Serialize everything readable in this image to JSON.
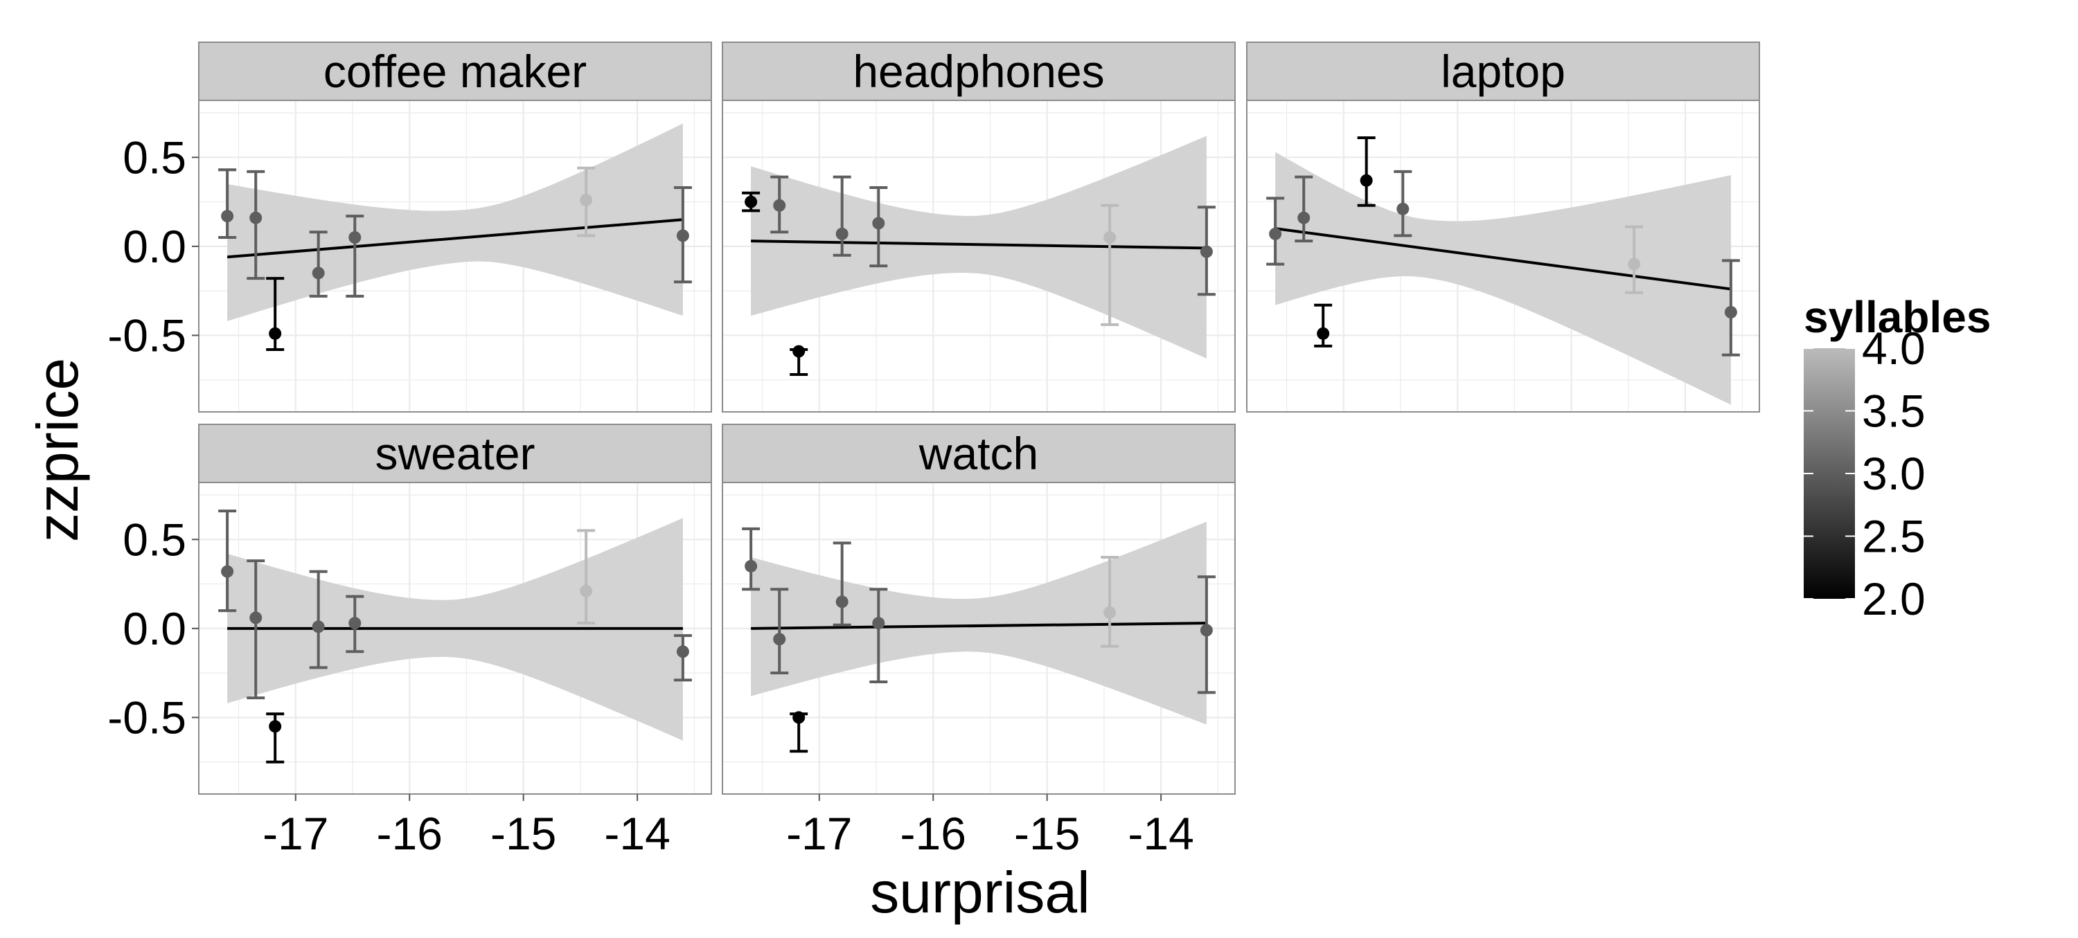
{
  "chart_data": {
    "type": "scatter",
    "facet_variable": "product",
    "xlabel": "surprisal",
    "ylabel": "zzprice",
    "xlim": [
      -17.85,
      -13.35
    ],
    "ylim": [
      -0.93,
      0.82
    ],
    "x_ticks": [
      {
        "value": -17,
        "label": "-17"
      },
      {
        "value": -16,
        "label": "-16"
      },
      {
        "value": -15,
        "label": "-15"
      },
      {
        "value": -14,
        "label": "-14"
      }
    ],
    "y_ticks": [
      {
        "value": 0.5,
        "label": "0.5"
      },
      {
        "value": 0.0,
        "label": "0.0"
      },
      {
        "value": -0.5,
        "label": "-0.5"
      }
    ],
    "grid": true,
    "legend": {
      "title": "syllables",
      "position": "right",
      "min": 2.0,
      "max": 4.0,
      "ticks": [
        {
          "value": 4.0,
          "label": "4.0"
        },
        {
          "value": 3.5,
          "label": "3.5"
        },
        {
          "value": 3.0,
          "label": "3.0"
        },
        {
          "value": 2.5,
          "label": "2.5"
        },
        {
          "value": 2.0,
          "label": "2.0"
        }
      ],
      "color_low": "#000000",
      "color_high": "#bbbbbb"
    },
    "colors": {
      "strip_fill": "#cccccc",
      "panel_border": "#8c8c8c",
      "grid": "#ebebeb",
      "ribbon": "#d3d3d3",
      "fit_line": "#000000"
    },
    "panels": [
      {
        "label": "coffee maker",
        "points": [
          {
            "x": -17.6,
            "y": 0.17,
            "ymin": 0.05,
            "ymax": 0.43,
            "syllables": 3
          },
          {
            "x": -17.35,
            "y": 0.16,
            "ymin": -0.18,
            "ymax": 0.42,
            "syllables": 3
          },
          {
            "x": -17.18,
            "y": -0.49,
            "ymin": -0.58,
            "ymax": -0.18,
            "syllables": 2
          },
          {
            "x": -16.8,
            "y": -0.15,
            "ymin": -0.28,
            "ymax": 0.08,
            "syllables": 3
          },
          {
            "x": -16.48,
            "y": 0.05,
            "ymin": -0.28,
            "ymax": 0.17,
            "syllables": 3
          },
          {
            "x": -14.45,
            "y": 0.26,
            "ymin": 0.06,
            "ymax": 0.44,
            "syllables": 4
          },
          {
            "x": -13.6,
            "y": 0.06,
            "ymin": -0.2,
            "ymax": 0.33,
            "syllables": 3
          }
        ],
        "fit": {
          "x0": -17.6,
          "y0": -0.06,
          "x1": -13.6,
          "y1": 0.15
        },
        "ribbon": {
          "x": [
            -17.6,
            -13.6
          ],
          "upper": [
            0.35,
            0.69
          ],
          "lower": [
            -0.42,
            -0.39
          ],
          "center_x": -15.5
        }
      },
      {
        "label": "headphones",
        "points": [
          {
            "x": -17.6,
            "y": 0.25,
            "ymin": 0.2,
            "ymax": 0.3,
            "syllables": 2
          },
          {
            "x": -17.35,
            "y": 0.23,
            "ymin": 0.08,
            "ymax": 0.39,
            "syllables": 3
          },
          {
            "x": -17.18,
            "y": -0.59,
            "ymin": -0.72,
            "ymax": -0.58,
            "syllables": 2
          },
          {
            "x": -16.8,
            "y": 0.07,
            "ymin": -0.05,
            "ymax": 0.39,
            "syllables": 3
          },
          {
            "x": -16.48,
            "y": 0.13,
            "ymin": -0.11,
            "ymax": 0.33,
            "syllables": 3
          },
          {
            "x": -14.45,
            "y": 0.05,
            "ymin": -0.44,
            "ymax": 0.23,
            "syllables": 4
          },
          {
            "x": -13.6,
            "y": -0.03,
            "ymin": -0.27,
            "ymax": 0.22,
            "syllables": 3
          }
        ],
        "fit": {
          "x0": -17.6,
          "y0": 0.03,
          "x1": -13.6,
          "y1": -0.01
        },
        "ribbon": {
          "x": [
            -17.6,
            -13.6
          ],
          "upper": [
            0.45,
            0.62
          ],
          "lower": [
            -0.39,
            -0.63
          ],
          "center_x": -15.7
        }
      },
      {
        "label": "laptop",
        "points": [
          {
            "x": -17.6,
            "y": 0.07,
            "ymin": -0.1,
            "ymax": 0.27,
            "syllables": 3
          },
          {
            "x": -17.35,
            "y": 0.16,
            "ymin": 0.03,
            "ymax": 0.39,
            "syllables": 3
          },
          {
            "x": -17.18,
            "y": -0.49,
            "ymin": -0.56,
            "ymax": -0.33,
            "syllables": 2
          },
          {
            "x": -16.8,
            "y": 0.37,
            "ymin": 0.23,
            "ymax": 0.61,
            "syllables": 2
          },
          {
            "x": -16.48,
            "y": 0.21,
            "ymin": 0.06,
            "ymax": 0.42,
            "syllables": 3
          },
          {
            "x": -14.45,
            "y": -0.1,
            "ymin": -0.26,
            "ymax": 0.11,
            "syllables": 4
          },
          {
            "x": -13.6,
            "y": -0.37,
            "ymin": -0.61,
            "ymax": -0.08,
            "syllables": 3
          }
        ],
        "fit": {
          "x0": -17.6,
          "y0": 0.1,
          "x1": -13.6,
          "y1": -0.24
        },
        "ribbon": {
          "x": [
            -17.6,
            -13.6
          ],
          "upper": [
            0.53,
            0.4
          ],
          "lower": [
            -0.33,
            -0.89
          ],
          "center_x": -16.3
        }
      },
      {
        "label": "sweater",
        "points": [
          {
            "x": -17.6,
            "y": 0.32,
            "ymin": 0.1,
            "ymax": 0.66,
            "syllables": 3
          },
          {
            "x": -17.35,
            "y": 0.06,
            "ymin": -0.39,
            "ymax": 0.38,
            "syllables": 3
          },
          {
            "x": -17.18,
            "y": -0.55,
            "ymin": -0.75,
            "ymax": -0.48,
            "syllables": 2
          },
          {
            "x": -16.8,
            "y": 0.01,
            "ymin": -0.22,
            "ymax": 0.32,
            "syllables": 3
          },
          {
            "x": -16.48,
            "y": 0.03,
            "ymin": -0.13,
            "ymax": 0.18,
            "syllables": 3
          },
          {
            "x": -14.45,
            "y": 0.21,
            "ymin": 0.03,
            "ymax": 0.55,
            "syllables": 4
          },
          {
            "x": -13.6,
            "y": -0.13,
            "ymin": -0.29,
            "ymax": -0.04,
            "syllables": 3
          }
        ],
        "fit": {
          "x0": -17.6,
          "y0": 0.0,
          "x1": -13.6,
          "y1": 0.0
        },
        "ribbon": {
          "x": [
            -17.6,
            -13.6
          ],
          "upper": [
            0.42,
            0.62
          ],
          "lower": [
            -0.42,
            -0.63
          ],
          "center_x": -15.7
        }
      },
      {
        "label": "watch",
        "points": [
          {
            "x": -17.6,
            "y": 0.35,
            "ymin": 0.22,
            "ymax": 0.56,
            "syllables": 3
          },
          {
            "x": -17.35,
            "y": -0.06,
            "ymin": -0.25,
            "ymax": 0.22,
            "syllables": 3
          },
          {
            "x": -17.18,
            "y": -0.5,
            "ymin": -0.69,
            "ymax": -0.48,
            "syllables": 2
          },
          {
            "x": -16.8,
            "y": 0.15,
            "ymin": 0.02,
            "ymax": 0.48,
            "syllables": 3
          },
          {
            "x": -16.48,
            "y": 0.03,
            "ymin": -0.3,
            "ymax": 0.22,
            "syllables": 3
          },
          {
            "x": -14.45,
            "y": 0.09,
            "ymin": -0.1,
            "ymax": 0.4,
            "syllables": 4
          },
          {
            "x": -13.6,
            "y": -0.01,
            "ymin": -0.36,
            "ymax": 0.29,
            "syllables": 3
          }
        ],
        "fit": {
          "x0": -17.6,
          "y0": 0.0,
          "x1": -13.6,
          "y1": 0.03
        },
        "ribbon": {
          "x": [
            -17.6,
            -13.6
          ],
          "upper": [
            0.4,
            0.6
          ],
          "lower": [
            -0.38,
            -0.54
          ],
          "center_x": -15.7
        }
      }
    ]
  }
}
